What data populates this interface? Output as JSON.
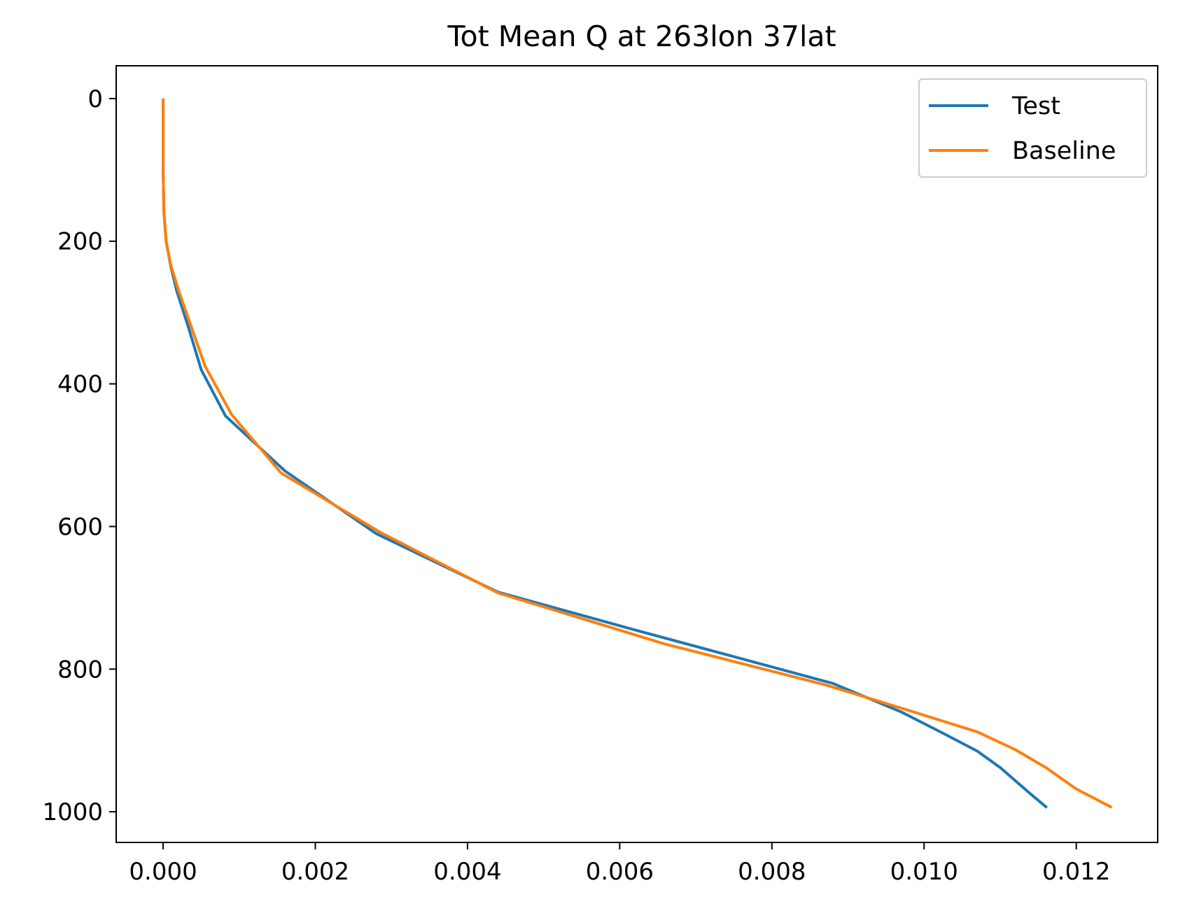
{
  "chart_data": {
    "type": "line",
    "title": "Tot Mean Q at 263lon 37lat",
    "xlabel": "",
    "ylabel": "",
    "xlim": [
      -0.000617,
      0.01307
    ],
    "ylim": [
      1043,
      -46
    ],
    "y_inverted": true,
    "x_ticks": [
      0.0,
      0.002,
      0.004,
      0.006,
      0.008,
      0.01,
      0.012
    ],
    "x_tick_labels": [
      "0.000",
      "0.002",
      "0.004",
      "0.006",
      "0.008",
      "0.010",
      "0.012"
    ],
    "y_ticks": [
      0,
      200,
      400,
      600,
      800,
      1000
    ],
    "y_tick_labels": [
      "0",
      "200",
      "400",
      "600",
      "800",
      "1000"
    ],
    "grid": false,
    "legend": {
      "position": "top-right",
      "entries": [
        "Test",
        "Baseline"
      ]
    },
    "series": [
      {
        "name": "Test",
        "color": "#1f77b4",
        "points": [
          [
            0.0,
            2
          ],
          [
            0.0,
            50
          ],
          [
            0.0,
            100
          ],
          [
            1e-05,
            160
          ],
          [
            4e-05,
            200
          ],
          [
            0.0001,
            235
          ],
          [
            0.00018,
            270
          ],
          [
            0.00033,
            320
          ],
          [
            0.0005,
            380
          ],
          [
            0.00082,
            445
          ],
          [
            0.0016,
            522
          ],
          [
            0.0028,
            610
          ],
          [
            0.0044,
            692
          ],
          [
            0.0062,
            745
          ],
          [
            0.0088,
            820
          ],
          [
            0.0097,
            860
          ],
          [
            0.01025,
            890
          ],
          [
            0.0107,
            915
          ],
          [
            0.011,
            938
          ],
          [
            0.0114,
            975
          ],
          [
            0.0116,
            993
          ]
        ]
      },
      {
        "name": "Baseline",
        "color": "#ff7f0e",
        "points": [
          [
            0.0,
            2
          ],
          [
            0.0,
            50
          ],
          [
            0.0,
            100
          ],
          [
            1e-05,
            160
          ],
          [
            4e-05,
            200
          ],
          [
            0.0001,
            233
          ],
          [
            0.0002,
            268
          ],
          [
            0.00037,
            320
          ],
          [
            0.00055,
            375
          ],
          [
            0.0009,
            443
          ],
          [
            0.00155,
            525
          ],
          [
            0.00285,
            608
          ],
          [
            0.0044,
            693
          ],
          [
            0.0066,
            765
          ],
          [
            0.0087,
            822
          ],
          [
            0.0098,
            858
          ],
          [
            0.0107,
            888
          ],
          [
            0.0112,
            913
          ],
          [
            0.0116,
            938
          ],
          [
            0.012,
            968
          ],
          [
            0.01245,
            993
          ]
        ]
      }
    ]
  }
}
